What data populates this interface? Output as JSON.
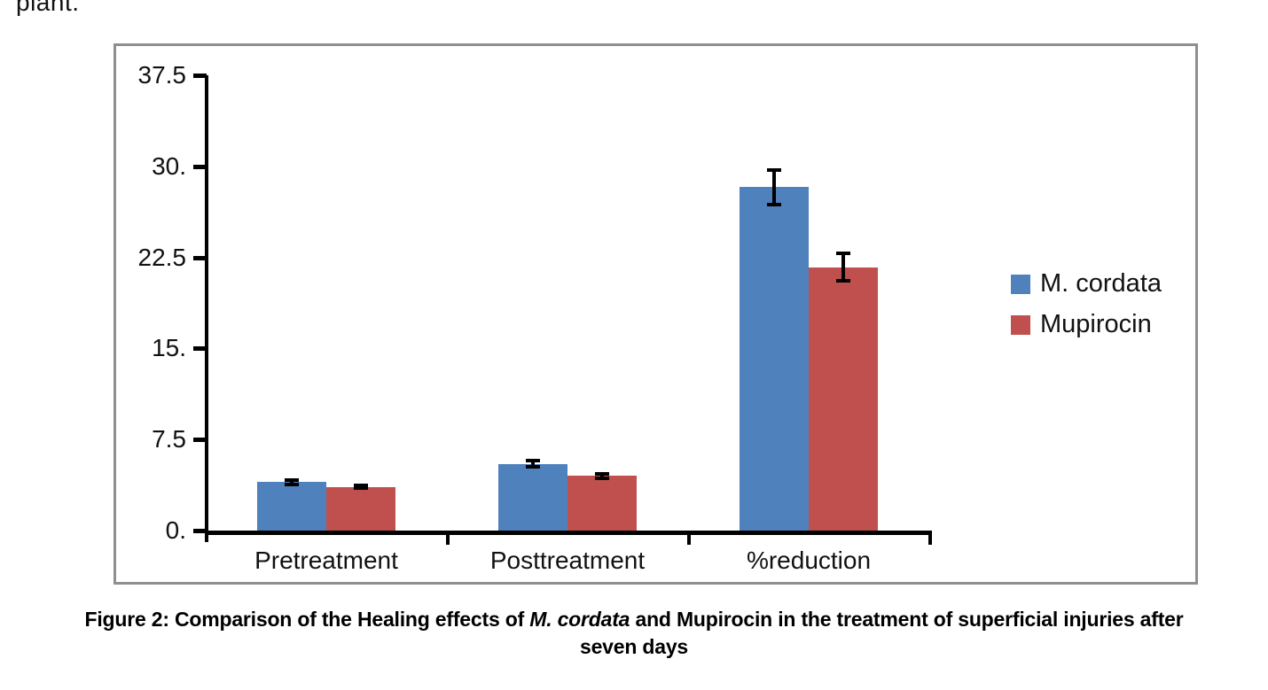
{
  "page": {
    "fragment_text": "plant."
  },
  "chart_data": {
    "type": "bar",
    "title": "",
    "categories": [
      "Pretreatment",
      "Posttreatment",
      "%reduction"
    ],
    "series": [
      {
        "name": "M. cordata",
        "color": "#4F81BD",
        "values": [
          4.0,
          5.5,
          28.3
        ],
        "errors": [
          0.25,
          0.35,
          1.5
        ]
      },
      {
        "name": "Mupirocin",
        "color": "#C0504D",
        "values": [
          3.6,
          4.5,
          21.7
        ],
        "errors": [
          0.2,
          0.25,
          1.2
        ]
      }
    ],
    "xlabel": "",
    "ylabel": "",
    "ylim": [
      0,
      37.5
    ],
    "ytick_interval": 7.5,
    "ytick_labels": [
      "0.",
      "7.5",
      "15.",
      "22.5",
      "30.",
      "37.5"
    ],
    "grid": false,
    "legend_position": "right",
    "error_bars": true
  },
  "caption": {
    "prefix": "Figure 2: Comparison of the Healing effects of ",
    "italic": "M. cordata",
    "suffix": " and Mupirocin in the treatment of superficial injuries after",
    "line2": "seven days"
  }
}
